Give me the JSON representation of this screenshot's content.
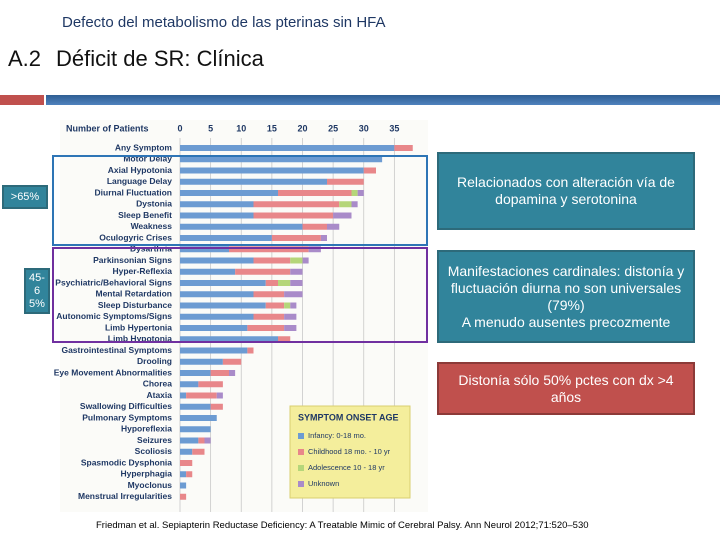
{
  "slide": {
    "title": "Defecto del metabolismo de las pterinas sin HFA",
    "section": "A.2",
    "heading": "Déficit de SR: Clínica",
    "label_high": ">65%",
    "label_mid": "45-65%",
    "box1": "Relacionados con alteración vía de dopamina y  serotonina",
    "box2": [
      "Manifestaciones cardinales: distonía y fluctuación diurna no son universales (79%)",
      "A menudo ausentes precozmente"
    ],
    "box3": "Distonía sólo 50% pctes con dx >4 años",
    "citation": "Friedman et al. Sepiapterin Reductase Deficiency: A Treatable Mimic of Cerebral Palsy. Ann Neurol 2012;71:520–530"
  },
  "chart_data": {
    "type": "stacked_barh",
    "x_label": "Number of Patients",
    "legend_title": "SYMPTOM ONSET AGE",
    "categories": [
      "Any Symptom",
      "Motor Delay",
      "Axial Hypotonia",
      "Language Delay",
      "Diurnal Fluctuation",
      "Dystonia",
      "Sleep Benefit",
      "Weakness",
      "Oculogyric Crises",
      "Dysarthria",
      "Parkinsonian Signs",
      "Hyper-Reflexia",
      "Psychiatric/Behavioral Signs",
      "Mental Retardation",
      "Sleep Disturbance",
      "Autonomic Symptoms/Signs",
      "Limb Hypertonia",
      "Limb Hypotonia",
      "Gastrointestinal Symptoms",
      "Drooling",
      "Eye Movement Abnormalities",
      "Chorea",
      "Ataxia",
      "Swallowing Difficulties",
      "Pulmonary Symptoms",
      "Hyporeflexia",
      "Seizures",
      "Scoliosis",
      "Spasmodic Dysphonia",
      "Hyperphagia",
      "Myoclonus",
      "Menstrual Irregularities"
    ],
    "series": [
      {
        "name": "Infancy: 0-18 mo.",
        "color": "#6c9bd2",
        "values": [
          35,
          33,
          30,
          24,
          16,
          12,
          12,
          20,
          15,
          8,
          12,
          9,
          14,
          12,
          14,
          12,
          11,
          16,
          11,
          7,
          5,
          3,
          1,
          5,
          6,
          5,
          3,
          2,
          0,
          1,
          1,
          0
        ]
      },
      {
        "name": "Childhood 18 mo. - 10 yr",
        "color": "#e8878a",
        "values": [
          3,
          0,
          2,
          6,
          12,
          14,
          13,
          4,
          8,
          13,
          6,
          9,
          2,
          5,
          3,
          5,
          6,
          2,
          1,
          3,
          3,
          4,
          5,
          2,
          0,
          0,
          1,
          2,
          2,
          1,
          0,
          1
        ]
      },
      {
        "name": "Adolescence 10 - 18 yr",
        "color": "#b5d67a",
        "values": [
          0,
          0,
          0,
          0,
          1,
          2,
          0,
          0,
          0,
          0,
          2,
          0,
          2,
          0,
          1,
          0,
          0,
          0,
          0,
          0,
          0,
          0,
          0,
          0,
          0,
          0,
          0,
          0,
          0,
          0,
          0,
          0
        ]
      },
      {
        "name": "Unknown",
        "color": "#a98bc9",
        "values": [
          0,
          0,
          0,
          0,
          1,
          1,
          3,
          2,
          1,
          2,
          1,
          2,
          2,
          3,
          1,
          2,
          2,
          0,
          0,
          0,
          1,
          0,
          1,
          0,
          0,
          0,
          1,
          0,
          0,
          0,
          0,
          0
        ]
      }
    ],
    "xlim": [
      0,
      40
    ],
    "xticks": [
      0,
      5,
      10,
      15,
      20,
      25,
      30,
      35
    ],
    "grid": true
  }
}
